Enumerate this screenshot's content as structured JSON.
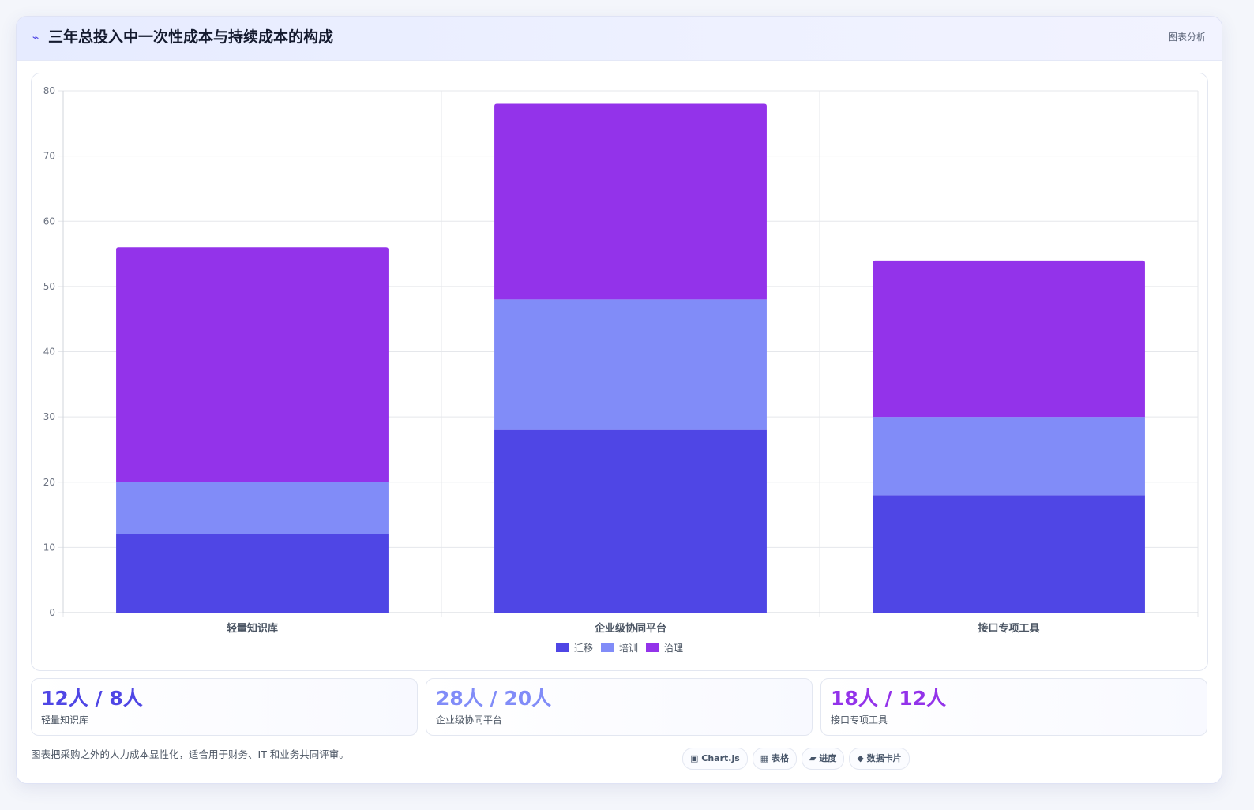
{
  "header": {
    "icon": "⌁",
    "title": "三年总投入中一次性成本与持续成本的构成",
    "tag": "图表分析"
  },
  "chart_data": {
    "type": "bar",
    "stacked": true,
    "categories": [
      "轻量知识库",
      "企业级协同平台",
      "接口专项工具"
    ],
    "series": [
      {
        "name": "迁移",
        "values": [
          12,
          28,
          18
        ],
        "color": "#4f46e5"
      },
      {
        "name": "培训",
        "values": [
          8,
          20,
          12
        ],
        "color": "#818cf8"
      },
      {
        "name": "治理",
        "values": [
          36,
          30,
          24
        ],
        "color": "#9333ea"
      }
    ],
    "ylim": [
      0,
      80
    ],
    "yticks": [
      0,
      10,
      20,
      30,
      40,
      50,
      60,
      70,
      80
    ],
    "grid": true,
    "legend": "bottom"
  },
  "stats": [
    {
      "value": "12人 / 8人",
      "label": "轻量知识库",
      "color": "#4f46e5"
    },
    {
      "value": "28人 / 20人",
      "label": "企业级协同平台",
      "color": "#818cf8"
    },
    {
      "value": "18人 / 12人",
      "label": "接口专项工具",
      "color": "#9333ea"
    }
  ],
  "footer": {
    "note": "图表把采购之外的人力成本显性化，适合用于财务、IT 和业务共同评审。"
  },
  "chips": [
    {
      "icon": "▣",
      "label": "Chart.js"
    },
    {
      "icon": "▦",
      "label": "表格"
    },
    {
      "icon": "▰",
      "label": "进度"
    },
    {
      "icon": "◆",
      "label": "数据卡片"
    }
  ]
}
